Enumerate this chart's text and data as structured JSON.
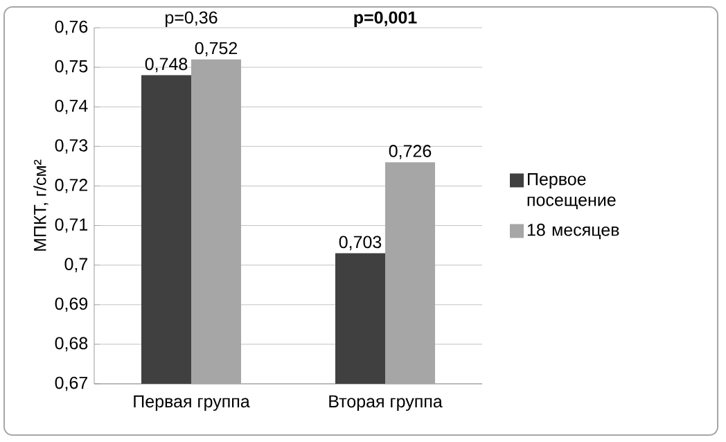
{
  "chart_data": {
    "type": "bar",
    "ylabel": "МПКТ, г/см²",
    "categories": [
      "Первая группа",
      "Вторая группа"
    ],
    "series": [
      {
        "name": "Первое посещение",
        "color": "#404040",
        "values": [
          0.748,
          0.703
        ],
        "value_labels": [
          "0,748",
          "0,703"
        ]
      },
      {
        "name": "18 месяцев",
        "color": "#a6a6a6",
        "values": [
          0.752,
          0.726
        ],
        "value_labels": [
          "0,752",
          "0,726"
        ]
      }
    ],
    "ylim": [
      0.67,
      0.76
    ],
    "yticks": [
      {
        "value": 0.67,
        "label": "0,67"
      },
      {
        "value": 0.68,
        "label": "0,68"
      },
      {
        "value": 0.69,
        "label": "0,69"
      },
      {
        "value": 0.7,
        "label": "0,7"
      },
      {
        "value": 0.71,
        "label": "0,71"
      },
      {
        "value": 0.72,
        "label": "0,72"
      },
      {
        "value": 0.73,
        "label": "0,73"
      },
      {
        "value": 0.74,
        "label": "0,74"
      },
      {
        "value": 0.75,
        "label": "0,75"
      },
      {
        "value": 0.76,
        "label": "0,76"
      }
    ],
    "annotations": [
      "p=0,36",
      "**p=0,001**"
    ],
    "grid": "y",
    "legend": "right"
  }
}
